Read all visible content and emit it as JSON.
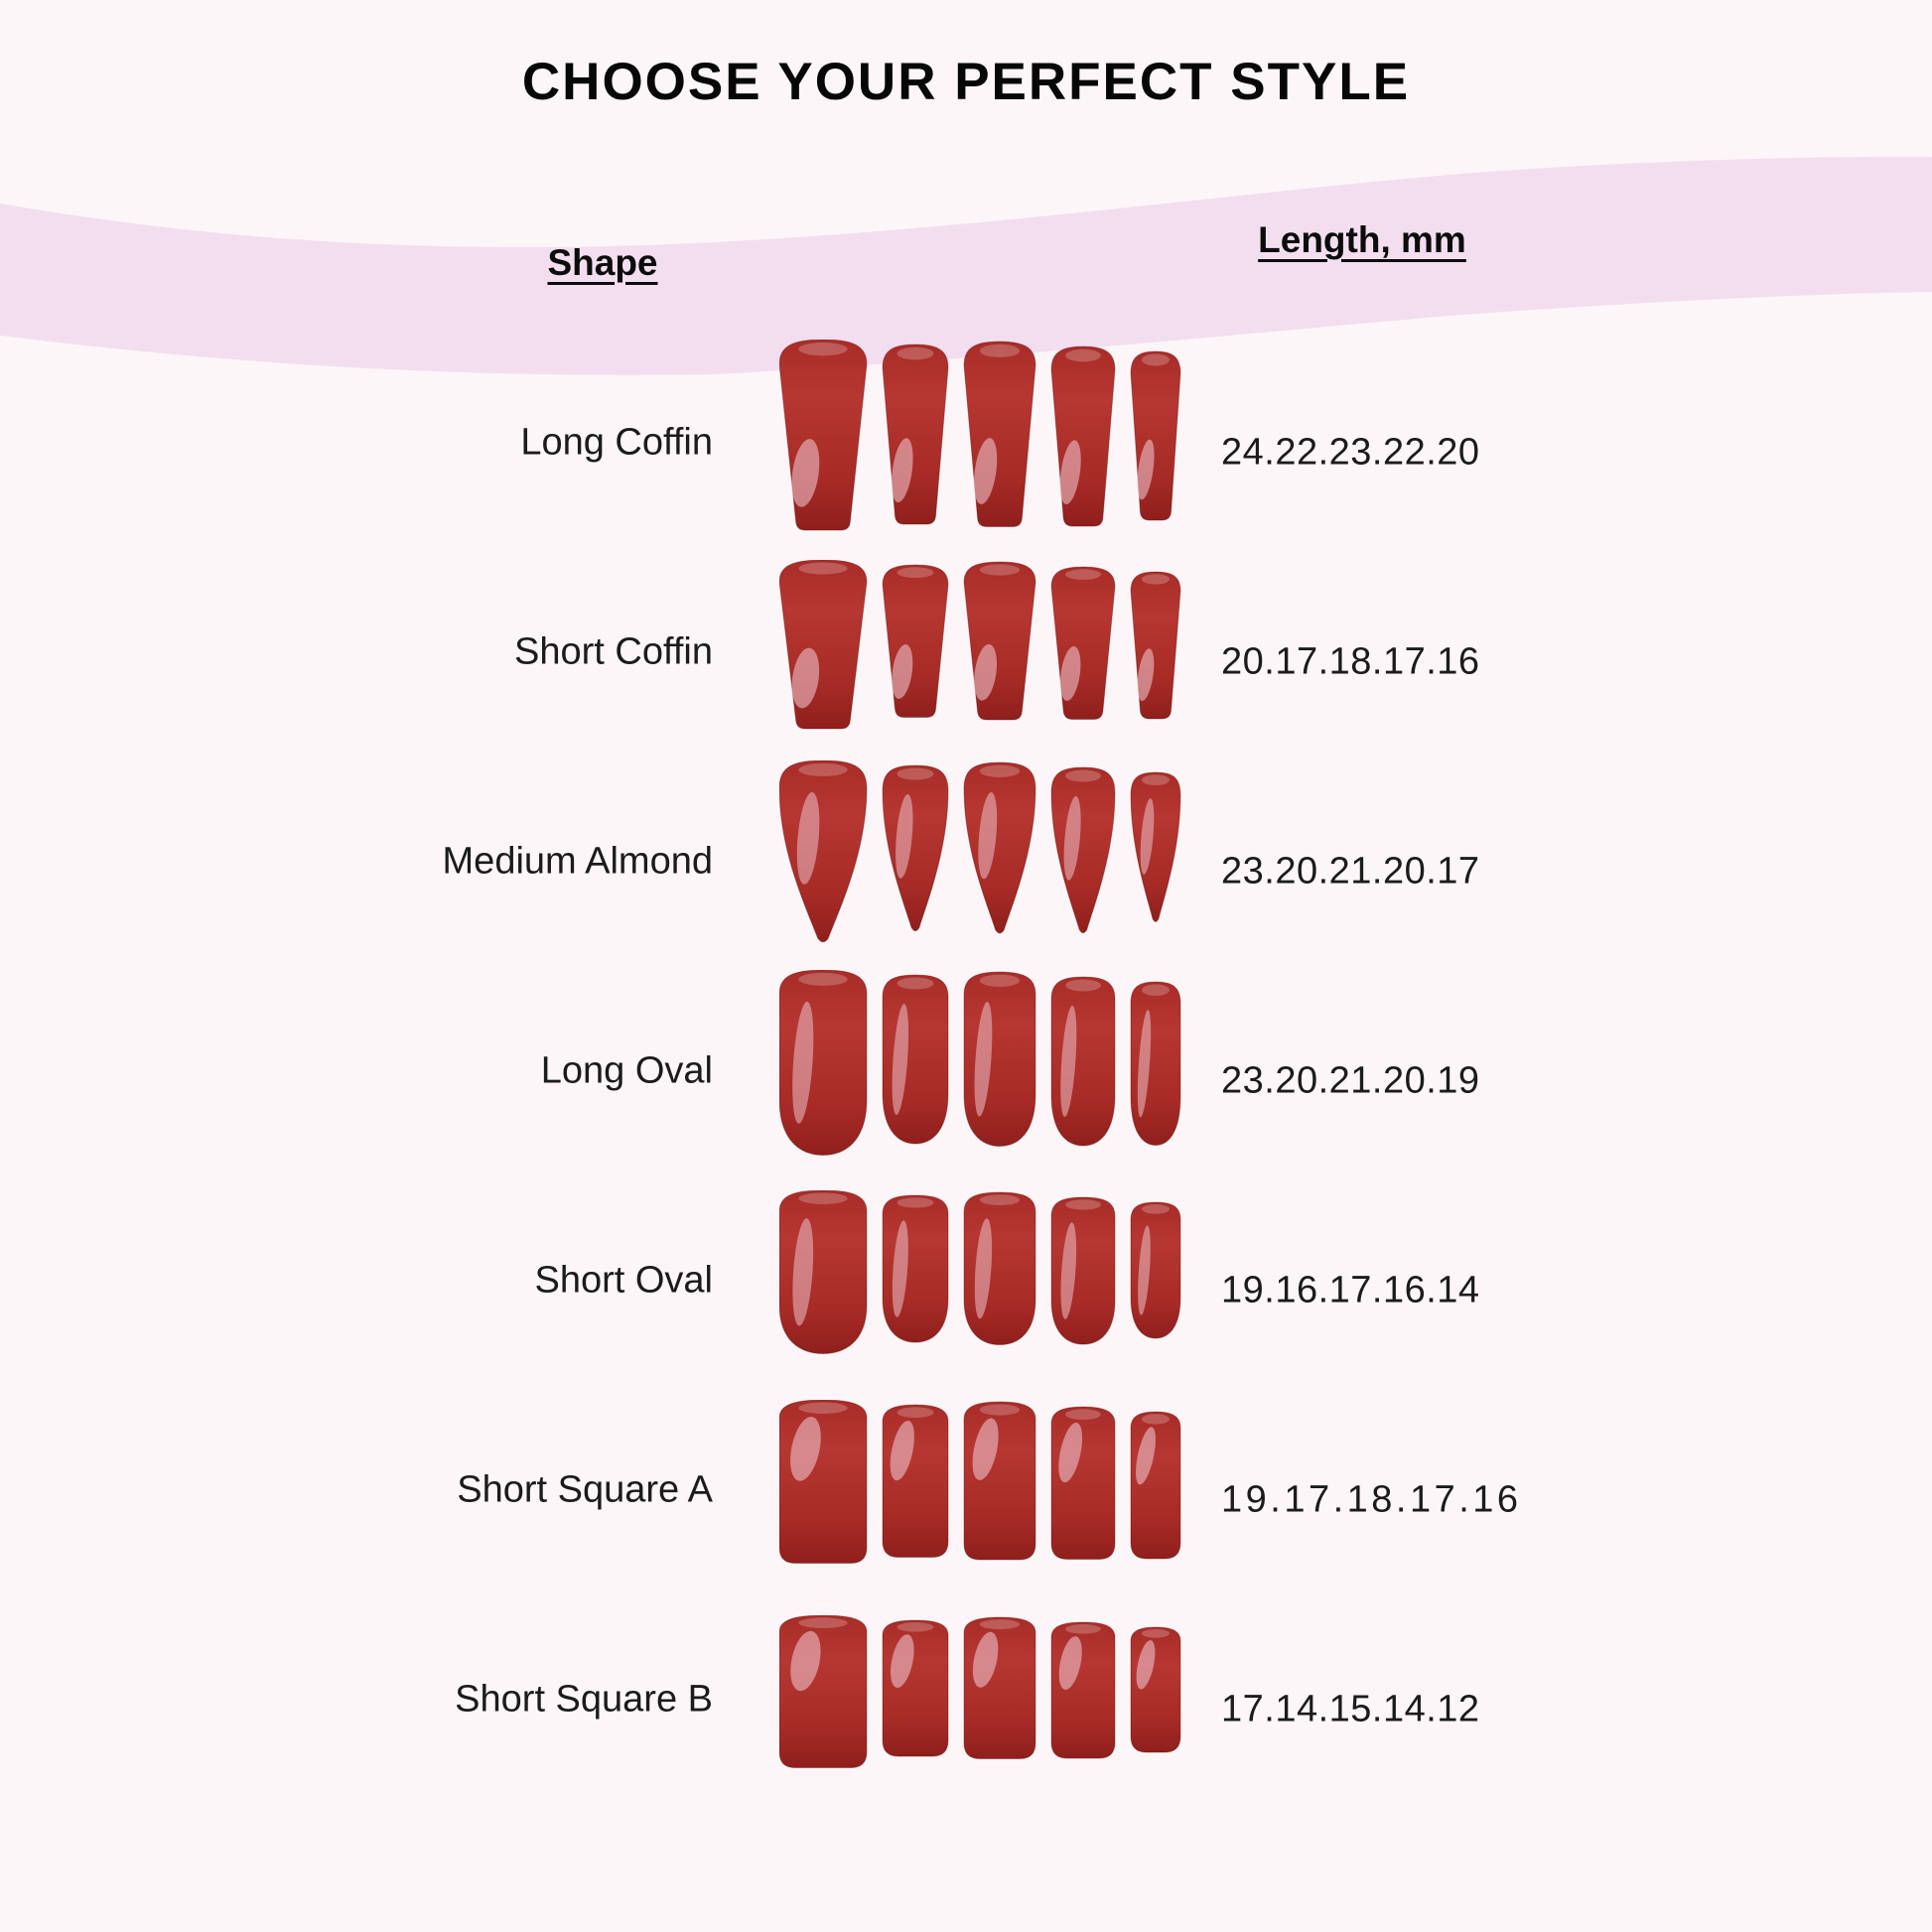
{
  "title": "CHOOSE YOUR PERFECT STYLE",
  "columns": {
    "shape": "Shape",
    "length": "Length, mm"
  },
  "colors": {
    "background": "#fcf6f8",
    "band": "#f3def0",
    "text": "#0c0c0c",
    "nail_base": "#b23330",
    "nail_dark": "#8f1f1c",
    "nail_highlight": "#edbfc9"
  },
  "rows": [
    {
      "shape": "Long Coffin",
      "lengths": "24.22.23.22.20",
      "nail_shape": "coffin",
      "mm": [
        24,
        22,
        23,
        22,
        20
      ]
    },
    {
      "shape": "Short Coffin",
      "lengths": "20.17.18.17.16",
      "nail_shape": "coffin",
      "mm": [
        20,
        17,
        18,
        17,
        16
      ]
    },
    {
      "shape": "Medium Almond",
      "lengths": "23.20.21.20.17",
      "nail_shape": "almond",
      "mm": [
        23,
        20,
        21,
        20,
        17
      ]
    },
    {
      "shape": "Long Oval",
      "lengths": "23.20.21.20.19",
      "nail_shape": "oval",
      "mm": [
        23,
        20,
        21,
        20,
        19
      ]
    },
    {
      "shape": "Short Oval",
      "lengths": "19.16.17.16.14",
      "nail_shape": "oval",
      "mm": [
        19,
        16,
        17,
        16,
        14
      ]
    },
    {
      "shape": "Short Square A",
      "lengths": "19.17.18.17.16",
      "nail_shape": "square",
      "mm": [
        19,
        17,
        18,
        17,
        16
      ],
      "value_letter_spacing": "3.5px"
    },
    {
      "shape": "Short Square B",
      "lengths": "17.14.15.14.12",
      "nail_shape": "square",
      "mm": [
        17,
        14,
        15,
        14,
        12
      ]
    }
  ]
}
